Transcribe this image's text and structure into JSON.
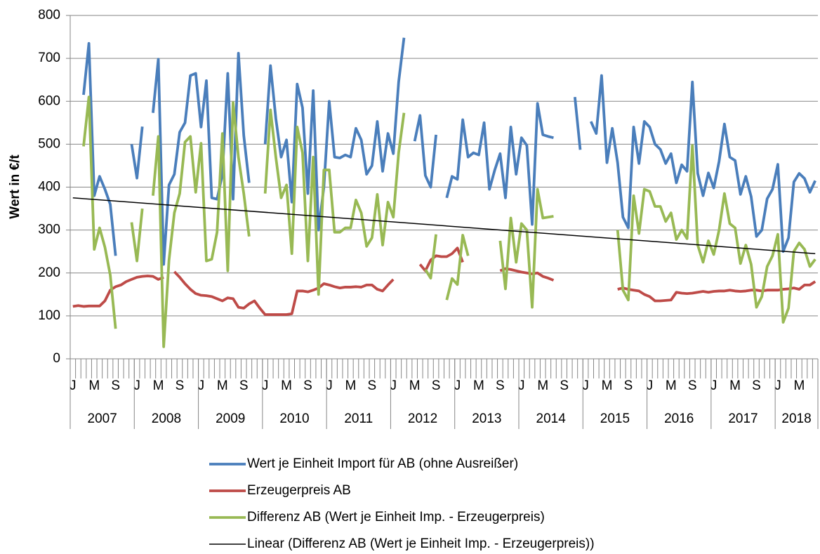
{
  "chart_data": {
    "type": "line",
    "y_label": "Wert in €/t",
    "ylim": [
      0,
      800
    ],
    "yticks": [
      0,
      100,
      200,
      300,
      400,
      500,
      600,
      700,
      800
    ],
    "grid": true,
    "legend": "bottom",
    "categories": [
      "J",
      null,
      null,
      null,
      "M",
      null,
      null,
      null,
      "S",
      null,
      null,
      null,
      "J",
      null,
      null,
      null,
      "M",
      null,
      null,
      null,
      "S",
      null,
      null,
      null,
      "J",
      null,
      null,
      null,
      "M",
      null,
      null,
      null,
      "S",
      null,
      null,
      null,
      "J",
      null,
      null,
      null,
      "M",
      null,
      null,
      null,
      "S",
      null,
      null,
      null,
      "J",
      null,
      null,
      null,
      "M",
      null,
      null,
      null,
      "S",
      null,
      null,
      null,
      "J",
      null,
      null,
      null,
      "M",
      null,
      null,
      null,
      "S",
      null,
      null,
      null,
      "J",
      null,
      null,
      null,
      "M",
      null,
      null,
      null,
      "S",
      null,
      null,
      null,
      "J",
      null,
      null,
      null,
      "M",
      null,
      null,
      null,
      "S",
      null,
      null,
      null,
      "J",
      null,
      null,
      null,
      "M",
      null,
      null,
      null,
      "S",
      null,
      null,
      null,
      "J",
      null,
      null,
      null,
      "M",
      null,
      null,
      null,
      "S",
      null,
      null,
      null,
      "J",
      null,
      null,
      null,
      "M",
      null,
      null,
      null,
      "S",
      null,
      null,
      null,
      "J",
      null,
      null,
      null,
      "M",
      null,
      null,
      null
    ],
    "years": [
      "2007",
      "2008",
      "2009",
      "2010",
      "2011",
      "2012",
      "2013",
      "2014",
      "2015",
      "2016",
      "2017",
      "2018"
    ],
    "series": [
      {
        "name": "Wert je Einheit Import für AB (ohne Ausreißer)",
        "color": "#4a7ebb",
        "values": [
          null,
          null,
          615,
          735,
          380,
          425,
          395,
          360,
          240,
          null,
          null,
          500,
          421,
          541,
          null,
          573,
          698,
          220,
          405,
          430,
          528,
          550,
          660,
          665,
          540,
          648,
          375,
          372,
          430,
          665,
          372,
          712,
          520,
          410,
          null,
          null,
          500,
          683,
          560,
          470,
          510,
          365,
          640,
          585,
          385,
          625,
          300,
          400,
          600,
          470,
          468,
          475,
          470,
          537,
          510,
          430,
          450,
          553,
          437,
          525,
          478,
          645,
          748,
          null,
          507,
          567,
          427,
          400,
          522,
          null,
          375,
          425,
          418,
          557,
          470,
          480,
          475,
          550,
          395,
          440,
          478,
          375,
          540,
          430,
          515,
          497,
          313,
          595,
          522,
          518,
          515,
          null,
          null,
          null,
          610,
          487,
          null,
          553,
          525,
          660,
          457,
          537,
          457,
          330,
          305,
          540,
          455,
          553,
          540,
          500,
          488,
          455,
          478,
          410,
          452,
          437,
          645,
          432,
          380,
          433,
          398,
          460,
          547,
          470,
          462,
          383,
          425,
          378,
          285,
          300,
          373,
          395,
          453,
          250,
          282,
          412,
          432,
          420,
          388,
          415
        ]
      },
      {
        "name": "Erzeugerpreis AB",
        "color": "#be4b48",
        "values": [
          122,
          124,
          122,
          123,
          123,
          123,
          135,
          160,
          168,
          172,
          180,
          185,
          190,
          192,
          193,
          192,
          185,
          190,
          null,
          203,
          190,
          175,
          162,
          152,
          148,
          147,
          145,
          140,
          135,
          142,
          140,
          120,
          118,
          128,
          135,
          118,
          103,
          103,
          103,
          103,
          103,
          105,
          158,
          158,
          156,
          160,
          165,
          175,
          172,
          168,
          165,
          167,
          167,
          168,
          167,
          172,
          172,
          162,
          158,
          172,
          185,
          null,
          null,
          null,
          null,
          220,
          205,
          230,
          240,
          238,
          238,
          245,
          258,
          225,
          null,
          null,
          null,
          null,
          null,
          null,
          205,
          210,
          208,
          205,
          202,
          200,
          198,
          200,
          192,
          188,
          183,
          null,
          null,
          null,
          null,
          null,
          null,
          null,
          null,
          null,
          null,
          null,
          162,
          165,
          162,
          160,
          158,
          150,
          145,
          135,
          135,
          136,
          137,
          155,
          153,
          152,
          153,
          155,
          157,
          155,
          157,
          158,
          158,
          160,
          158,
          157,
          158,
          160,
          160,
          158,
          160,
          160,
          160,
          162,
          163,
          165,
          162,
          172,
          172,
          180
        ]
      },
      {
        "name": "Differenz AB (Wert je Einheit Imp. - Erzeugerpreis)",
        "color": "#98b954",
        "values": [
          null,
          null,
          495,
          610,
          255,
          305,
          260,
          195,
          70,
          null,
          null,
          318,
          228,
          350,
          null,
          380,
          518,
          28,
          230,
          340,
          385,
          505,
          518,
          388,
          502,
          228,
          232,
          295,
          525,
          205,
          597,
          470,
          385,
          285,
          null,
          null,
          385,
          580,
          470,
          375,
          405,
          245,
          540,
          480,
          228,
          470,
          150,
          440,
          440,
          295,
          295,
          305,
          305,
          370,
          340,
          262,
          282,
          383,
          265,
          365,
          330,
          480,
          573,
          null,
          null,
          null,
          208,
          188,
          290,
          null,
          137,
          187,
          173,
          288,
          240,
          null,
          null,
          null,
          null,
          null,
          275,
          163,
          328,
          225,
          315,
          300,
          120,
          395,
          328,
          330,
          332,
          null,
          null,
          null,
          null,
          null,
          null,
          null,
          null,
          null,
          null,
          null,
          300,
          160,
          137,
          380,
          292,
          395,
          390,
          355,
          355,
          320,
          340,
          278,
          300,
          280,
          497,
          265,
          225,
          275,
          243,
          300,
          385,
          315,
          305,
          222,
          265,
          220,
          120,
          145,
          215,
          240,
          290,
          85,
          118,
          250,
          270,
          255,
          215,
          232
        ]
      }
    ],
    "trend": {
      "name": "Linear (Differenz AB (Wert je Einheit Imp. - Erzeugerpreis))",
      "color": "#000000",
      "start": 375,
      "end": 245
    }
  }
}
